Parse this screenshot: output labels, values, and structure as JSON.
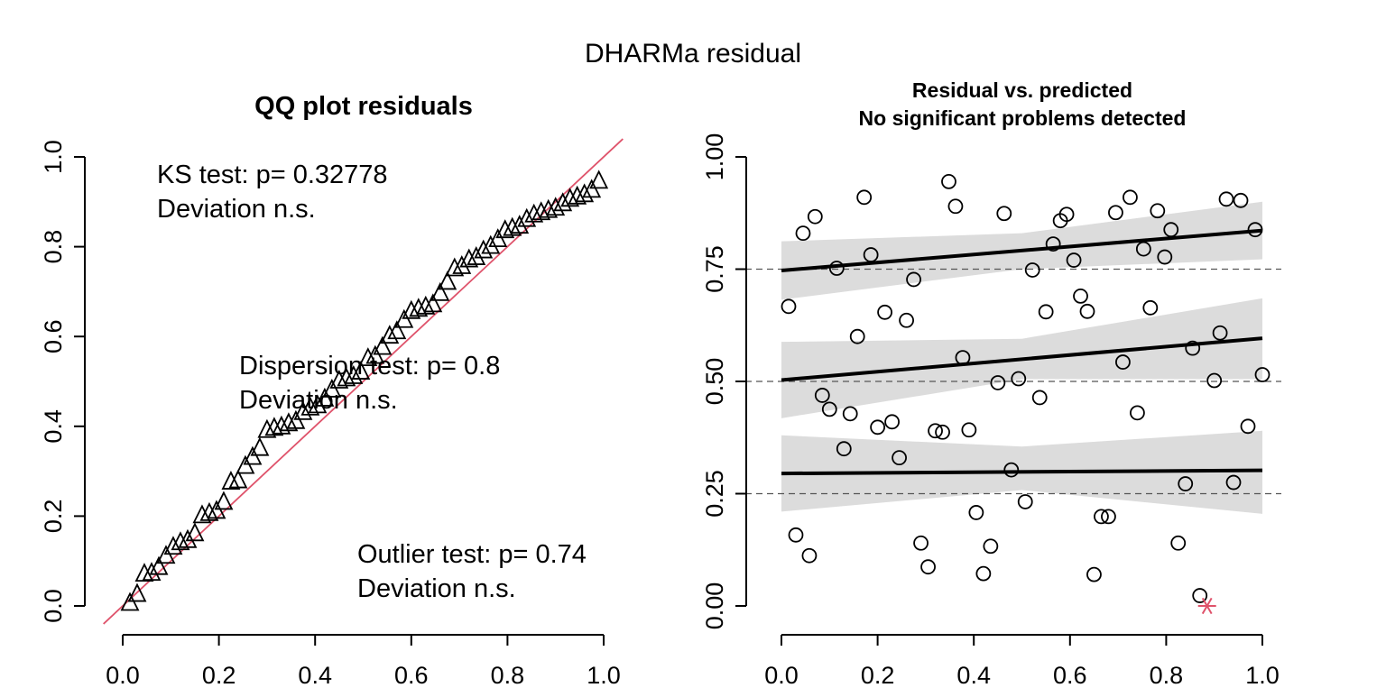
{
  "figure": {
    "title": "DHARMa residual"
  },
  "chart_data": [
    {
      "type": "scatter",
      "title": "QQ plot residuals",
      "xlabel": "",
      "ylabel": "",
      "xlim": [
        0,
        1
      ],
      "ylim": [
        0,
        1
      ],
      "x_ticks": [
        "0.0",
        "0.2",
        "0.4",
        "0.6",
        "0.8",
        "1.0"
      ],
      "y_ticks": [
        "0.0",
        "0.2",
        "0.4",
        "0.6",
        "0.8",
        "1.0"
      ],
      "marker": "triangle",
      "reference_line": {
        "slope": 1,
        "intercept": 0,
        "color": "#DF536B"
      },
      "series": [
        {
          "x": [
            0.015,
            0.03,
            0.045,
            0.06,
            0.075,
            0.09,
            0.105,
            0.12,
            0.135,
            0.15,
            0.165,
            0.18,
            0.195,
            0.21,
            0.225,
            0.24,
            0.255,
            0.27,
            0.285,
            0.3,
            0.315,
            0.33,
            0.345,
            0.36,
            0.375,
            0.39,
            0.405,
            0.42,
            0.435,
            0.45,
            0.465,
            0.48,
            0.495,
            0.51,
            0.525,
            0.54,
            0.555,
            0.57,
            0.585,
            0.6,
            0.615,
            0.63,
            0.645,
            0.66,
            0.675,
            0.69,
            0.705,
            0.72,
            0.735,
            0.75,
            0.765,
            0.78,
            0.795,
            0.81,
            0.825,
            0.84,
            0.855,
            0.87,
            0.885,
            0.9,
            0.915,
            0.93,
            0.945,
            0.96,
            0.975,
            0.99
          ],
          "y": [
            0.005,
            0.025,
            0.07,
            0.072,
            0.085,
            0.11,
            0.13,
            0.14,
            0.145,
            0.16,
            0.2,
            0.205,
            0.21,
            0.23,
            0.275,
            0.278,
            0.31,
            0.33,
            0.35,
            0.39,
            0.395,
            0.398,
            0.405,
            0.41,
            0.43,
            0.44,
            0.445,
            0.46,
            0.48,
            0.5,
            0.505,
            0.51,
            0.52,
            0.55,
            0.555,
            0.575,
            0.6,
            0.61,
            0.635,
            0.655,
            0.66,
            0.665,
            0.67,
            0.695,
            0.72,
            0.75,
            0.755,
            0.77,
            0.775,
            0.79,
            0.8,
            0.815,
            0.835,
            0.84,
            0.845,
            0.86,
            0.87,
            0.875,
            0.88,
            0.885,
            0.895,
            0.905,
            0.91,
            0.915,
            0.925,
            0.945
          ]
        }
      ],
      "annotations": [
        {
          "lines": [
            "KS test: p= 0.32778",
            "Deviation  n.s."
          ]
        },
        {
          "lines": [
            "Dispersion test: p= 0.8",
            "Deviation  n.s."
          ]
        },
        {
          "lines": [
            "Outlier test: p= 0.74",
            "Deviation  n.s."
          ]
        }
      ]
    },
    {
      "type": "scatter",
      "title": "Residual vs. predicted",
      "subtitle": "No significant problems detected",
      "xlabel": "",
      "ylabel": "",
      "xlim": [
        0,
        1
      ],
      "ylim": [
        0,
        1
      ],
      "x_ticks": [
        "0.0",
        "0.2",
        "0.4",
        "0.6",
        "0.8",
        "1.0"
      ],
      "y_ticks": [
        "0.00",
        "0.25",
        "0.50",
        "0.75",
        "1.00"
      ],
      "reference_lines_y": [
        0.25,
        0.5,
        0.75
      ],
      "points": [
        {
          "x": 0.015,
          "y": 0.667
        },
        {
          "x": 0.03,
          "y": 0.158
        },
        {
          "x": 0.045,
          "y": 0.83
        },
        {
          "x": 0.058,
          "y": 0.112
        },
        {
          "x": 0.07,
          "y": 0.867
        },
        {
          "x": 0.085,
          "y": 0.469
        },
        {
          "x": 0.1,
          "y": 0.438
        },
        {
          "x": 0.115,
          "y": 0.752
        },
        {
          "x": 0.13,
          "y": 0.35
        },
        {
          "x": 0.143,
          "y": 0.428
        },
        {
          "x": 0.158,
          "y": 0.6
        },
        {
          "x": 0.172,
          "y": 0.91
        },
        {
          "x": 0.186,
          "y": 0.782
        },
        {
          "x": 0.2,
          "y": 0.398
        },
        {
          "x": 0.215,
          "y": 0.654
        },
        {
          "x": 0.23,
          "y": 0.41
        },
        {
          "x": 0.245,
          "y": 0.33
        },
        {
          "x": 0.26,
          "y": 0.636
        },
        {
          "x": 0.275,
          "y": 0.727
        },
        {
          "x": 0.29,
          "y": 0.14
        },
        {
          "x": 0.305,
          "y": 0.087
        },
        {
          "x": 0.32,
          "y": 0.39
        },
        {
          "x": 0.335,
          "y": 0.387
        },
        {
          "x": 0.348,
          "y": 0.945
        },
        {
          "x": 0.362,
          "y": 0.89
        },
        {
          "x": 0.377,
          "y": 0.553
        },
        {
          "x": 0.39,
          "y": 0.392
        },
        {
          "x": 0.405,
          "y": 0.208
        },
        {
          "x": 0.42,
          "y": 0.072
        },
        {
          "x": 0.435,
          "y": 0.133
        },
        {
          "x": 0.45,
          "y": 0.497
        },
        {
          "x": 0.463,
          "y": 0.874
        },
        {
          "x": 0.478,
          "y": 0.303
        },
        {
          "x": 0.493,
          "y": 0.506
        },
        {
          "x": 0.507,
          "y": 0.232
        },
        {
          "x": 0.522,
          "y": 0.748
        },
        {
          "x": 0.537,
          "y": 0.464
        },
        {
          "x": 0.55,
          "y": 0.655
        },
        {
          "x": 0.565,
          "y": 0.806
        },
        {
          "x": 0.58,
          "y": 0.858
        },
        {
          "x": 0.593,
          "y": 0.872
        },
        {
          "x": 0.608,
          "y": 0.77
        },
        {
          "x": 0.622,
          "y": 0.69
        },
        {
          "x": 0.636,
          "y": 0.656
        },
        {
          "x": 0.65,
          "y": 0.07
        },
        {
          "x": 0.665,
          "y": 0.199
        },
        {
          "x": 0.68,
          "y": 0.199
        },
        {
          "x": 0.695,
          "y": 0.876
        },
        {
          "x": 0.71,
          "y": 0.543
        },
        {
          "x": 0.725,
          "y": 0.91
        },
        {
          "x": 0.74,
          "y": 0.43
        },
        {
          "x": 0.753,
          "y": 0.795
        },
        {
          "x": 0.767,
          "y": 0.664
        },
        {
          "x": 0.782,
          "y": 0.88
        },
        {
          "x": 0.797,
          "y": 0.777
        },
        {
          "x": 0.81,
          "y": 0.838
        },
        {
          "x": 0.825,
          "y": 0.14
        },
        {
          "x": 0.84,
          "y": 0.272
        },
        {
          "x": 0.855,
          "y": 0.574
        },
        {
          "x": 0.87,
          "y": 0.023
        },
        {
          "x": 0.9,
          "y": 0.502
        },
        {
          "x": 0.912,
          "y": 0.608
        },
        {
          "x": 0.925,
          "y": 0.906
        },
        {
          "x": 0.94,
          "y": 0.275
        },
        {
          "x": 0.955,
          "y": 0.903
        },
        {
          "x": 0.97,
          "y": 0.4
        },
        {
          "x": 0.985,
          "y": 0.838
        },
        {
          "x": 1.0,
          "y": 0.515
        }
      ],
      "outliers": [
        {
          "x": 0.885,
          "y": 0.0,
          "color": "#DF536B"
        }
      ],
      "quantile_fits": [
        {
          "quantile": 0.25,
          "line": [
            [
              0,
              0.295
            ],
            [
              1,
              0.302
            ]
          ],
          "band_upper": [
            [
              0,
              0.38
            ],
            [
              0.5,
              0.355
            ],
            [
              1,
              0.39
            ]
          ],
          "band_lower": [
            [
              0,
              0.21
            ],
            [
              0.5,
              0.258
            ],
            [
              1,
              0.205
            ]
          ]
        },
        {
          "quantile": 0.5,
          "line": [
            [
              0,
              0.503
            ],
            [
              1,
              0.596
            ]
          ],
          "band_upper": [
            [
              0,
              0.588
            ],
            [
              0.5,
              0.595
            ],
            [
              1,
              0.685
            ]
          ],
          "band_lower": [
            [
              0,
              0.418
            ],
            [
              0.5,
              0.505
            ],
            [
              1,
              0.505
            ]
          ]
        },
        {
          "quantile": 0.75,
          "line": [
            [
              0,
              0.747
            ],
            [
              1,
              0.836
            ]
          ],
          "band_upper": [
            [
              0,
              0.812
            ],
            [
              0.5,
              0.83
            ],
            [
              1,
              0.9
            ]
          ],
          "band_lower": [
            [
              0,
              0.682
            ],
            [
              0.5,
              0.75
            ],
            [
              1,
              0.772
            ]
          ]
        }
      ]
    }
  ]
}
